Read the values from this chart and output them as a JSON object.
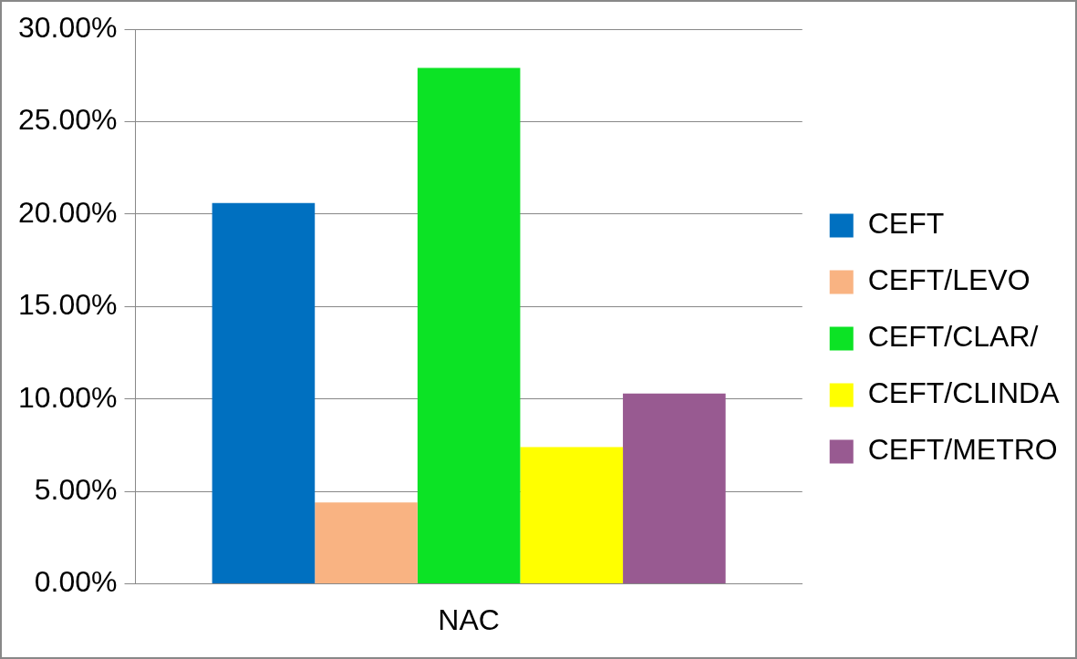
{
  "chart_data": {
    "type": "bar",
    "categories": [
      "NAC"
    ],
    "series": [
      {
        "name": "CEFT",
        "color": "#0070c0",
        "values": [
          20.6
        ]
      },
      {
        "name": "CEFT/LEVO",
        "color": "#f9b382",
        "values": [
          4.4
        ]
      },
      {
        "name": "CEFT/CLAR/",
        "color": "#0ce325",
        "values": [
          27.9
        ]
      },
      {
        "name": "CEFT/CLINDA",
        "color": "#ffff00",
        "values": [
          7.4
        ]
      },
      {
        "name": "CEFT/METRO",
        "color": "#985a91",
        "values": [
          10.3
        ]
      }
    ],
    "ylim": [
      0,
      30
    ],
    "yticks": [
      {
        "value": 0,
        "label": "0.00%"
      },
      {
        "value": 5,
        "label": "5.00%"
      },
      {
        "value": 10,
        "label": "10.00%"
      },
      {
        "value": 15,
        "label": "15.00%"
      },
      {
        "value": 20,
        "label": "20.00%"
      },
      {
        "value": 25,
        "label": "25.00%"
      },
      {
        "value": 30,
        "label": "30.00%"
      }
    ],
    "grid": "y",
    "legend": "right"
  }
}
